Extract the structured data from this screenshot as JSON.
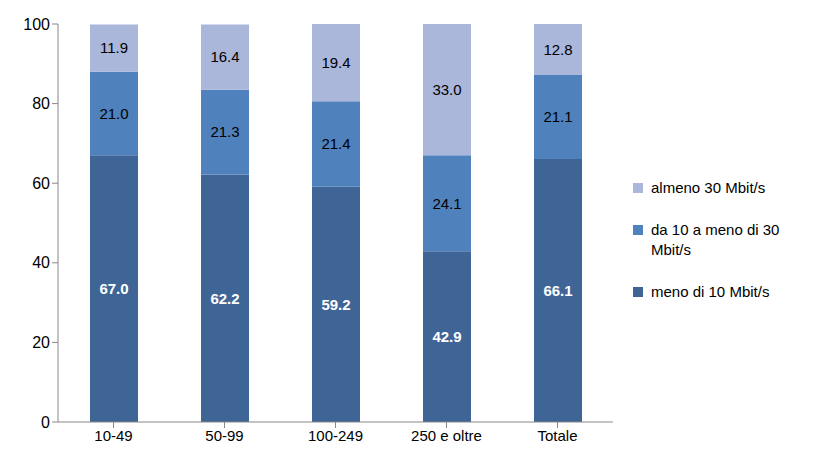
{
  "chart_data": {
    "type": "bar",
    "stacked": true,
    "data_labels": true,
    "legend": "right",
    "grid": false,
    "categories": [
      "10-49",
      "50-99",
      "100-249",
      "250 e oltre",
      "Totale"
    ],
    "series": [
      {
        "name": "meno di 10 Mbit/s",
        "color": "#3f6597",
        "values": [
          67.0,
          62.2,
          59.2,
          42.9,
          66.1
        ]
      },
      {
        "name": "da 10 a meno di 30 Mbit/s",
        "color": "#4f81bd",
        "values": [
          21.0,
          21.3,
          21.4,
          24.1,
          21.1
        ]
      },
      {
        "name": "almeno 30 Mbit/s",
        "color": "#aab6da",
        "values": [
          11.9,
          16.4,
          19.4,
          33.0,
          12.8
        ]
      }
    ],
    "ylim": [
      0,
      100
    ],
    "yticks": [
      0,
      20,
      40,
      60,
      80,
      100
    ]
  }
}
